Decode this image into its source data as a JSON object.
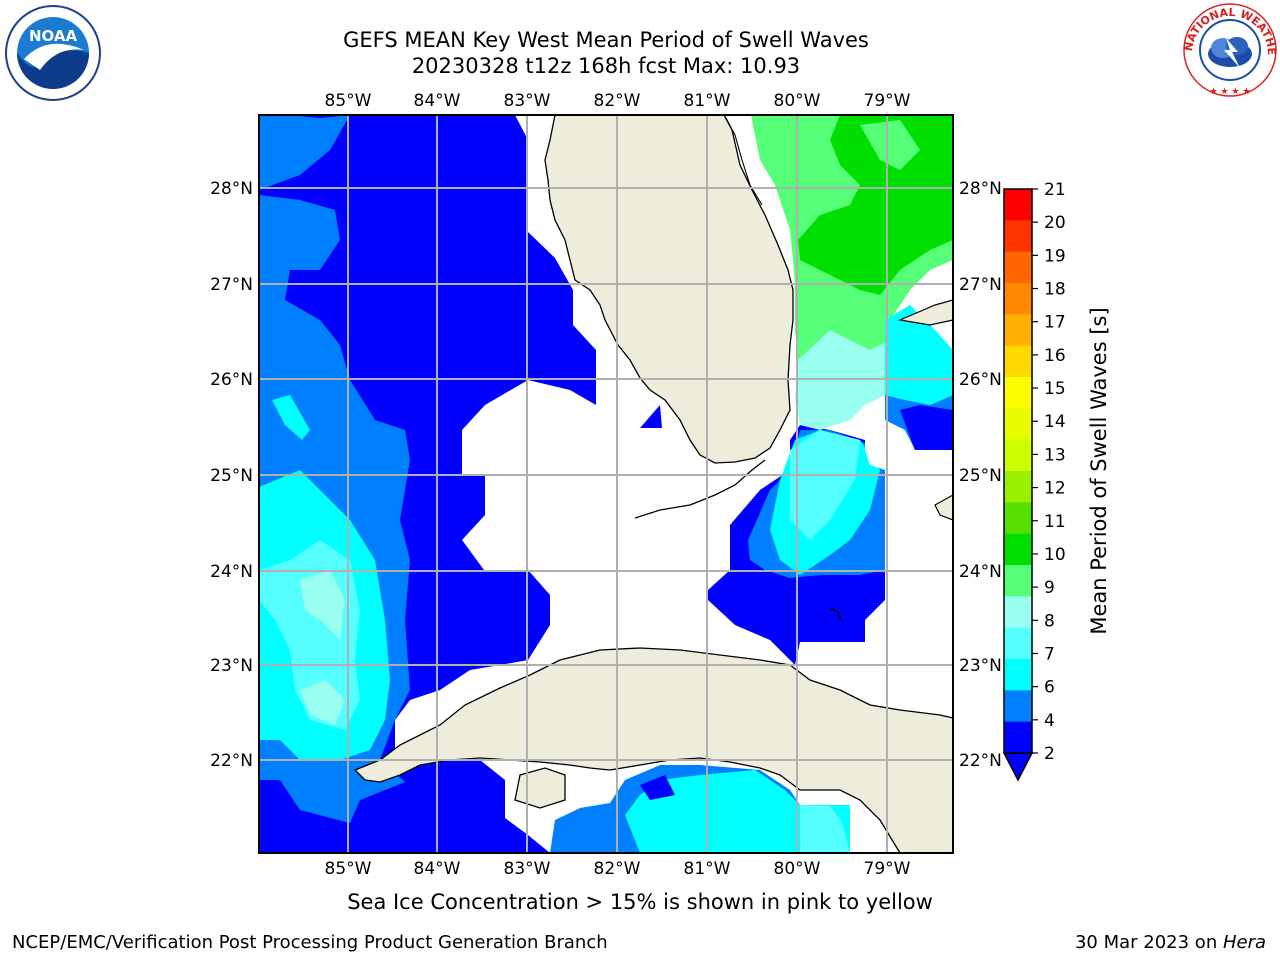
{
  "header": {
    "title_line1": "GEFS MEAN Key West Mean Period of Swell Waves",
    "title_line2": "20230328 t12z 168h fcst   Max: 10.93"
  },
  "map": {
    "lon_labels": [
      "85°W",
      "84°W",
      "83°W",
      "82°W",
      "81°W",
      "80°W",
      "79°W"
    ],
    "lat_labels": [
      "28°N",
      "27°N",
      "26°N",
      "25°N",
      "24°N",
      "23°N",
      "22°N"
    ]
  },
  "colorbar": {
    "label": "Mean Period of Swell Waves [s]",
    "ticks": [
      "21",
      "20",
      "19",
      "18",
      "17",
      "16",
      "15",
      "14",
      "13",
      "12",
      "11",
      "10",
      "9",
      "8",
      "7",
      "6",
      "4",
      "2"
    ],
    "colors": [
      "#ff0000",
      "#ff3300",
      "#ff6600",
      "#ff8800",
      "#ffb000",
      "#ffd800",
      "#ffff00",
      "#e8ff00",
      "#ccff00",
      "#99f000",
      "#55e000",
      "#00e000",
      "#55ff77",
      "#99ffee",
      "#55ffff",
      "#00ffff",
      "#0080ff",
      "#0000ff"
    ]
  },
  "footer": {
    "note": "Sea Ice Concentration > 15% is shown in pink to yellow",
    "credit": "NCEP/EMC/Verification Post Processing Product Generation Branch",
    "date_prefix": "30 Mar 2023 on ",
    "date_host": "Hera"
  },
  "logos": {
    "noaa_text": "NOAA",
    "nws_text": "NATIONAL WEATHER SERVICE"
  }
}
